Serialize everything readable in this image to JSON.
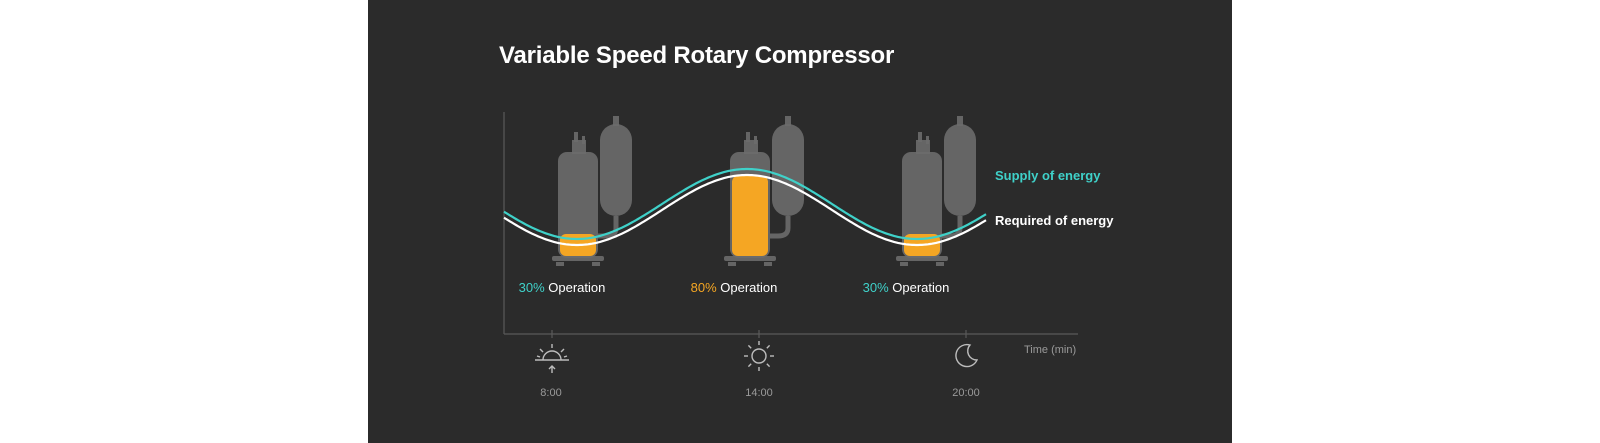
{
  "title": "Variable Speed Rotary Compressor",
  "colors": {
    "background": "#2b2b2b",
    "supply": "#3fd1c9",
    "required": "#ffffff",
    "high_load": "#f5a623",
    "compressor_body": "#6b6b6b"
  },
  "curves": {
    "supply_label": "Supply of energy",
    "required_label": "Required of energy"
  },
  "operations": [
    {
      "percent": "30%",
      "text": " Operation",
      "color": "#3fd1c9",
      "load": 0.3
    },
    {
      "percent": "80%",
      "text": " Operation",
      "color": "#f5a623",
      "load": 0.8
    },
    {
      "percent": "30%",
      "text": " Operation",
      "color": "#3fd1c9",
      "load": 0.3
    }
  ],
  "axis": {
    "x_label": "Time (min)"
  },
  "times": [
    {
      "label": "8:00",
      "icon": "sunrise-icon"
    },
    {
      "label": "14:00",
      "icon": "sun-icon"
    },
    {
      "label": "20:00",
      "icon": "moon-icon"
    }
  ]
}
